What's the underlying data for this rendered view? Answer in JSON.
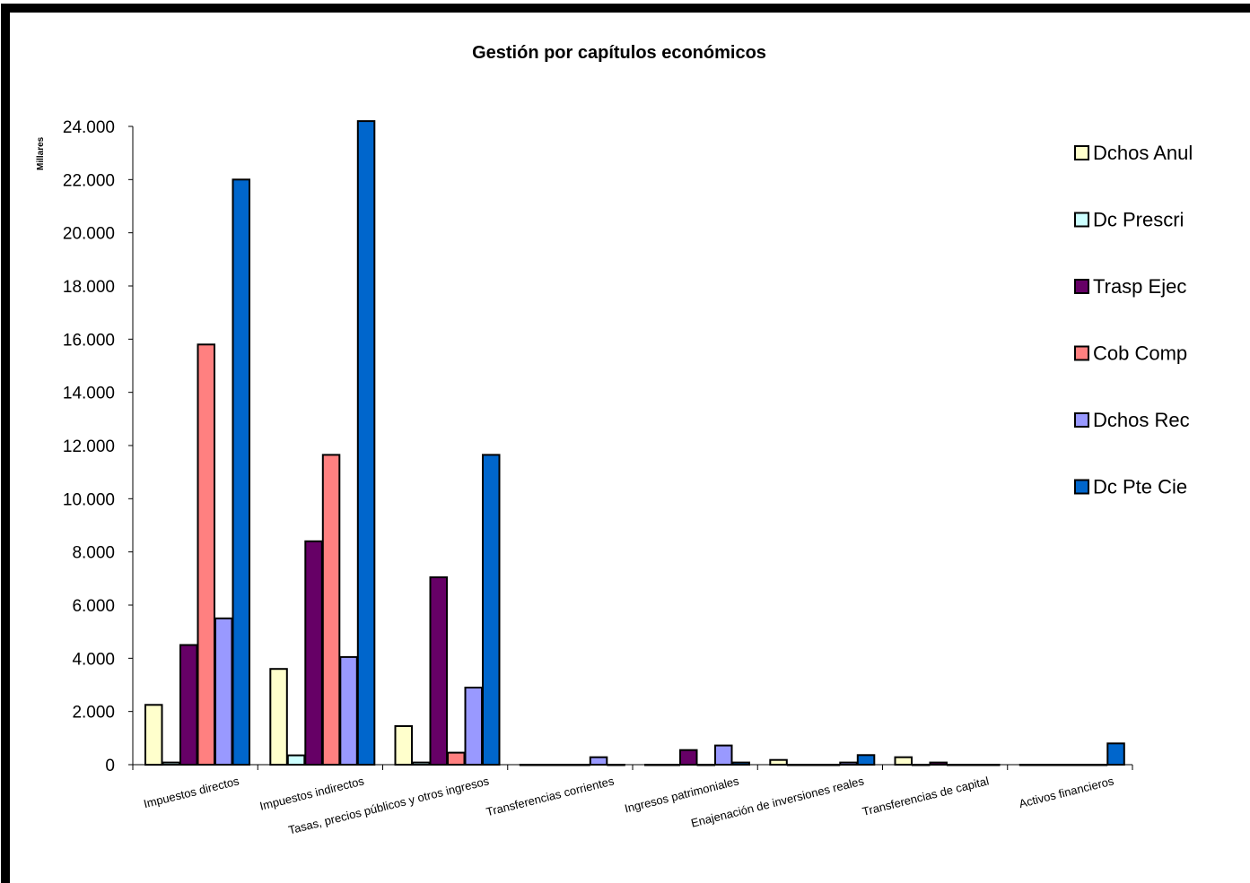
{
  "chart_data": {
    "type": "bar",
    "title": "Gestión por capítulos económicos",
    "ylabel": "Millares",
    "ylim": [
      0,
      24000
    ],
    "yticks": [
      "0",
      "2.000",
      "4.000",
      "6.000",
      "8.000",
      "10.000",
      "12.000",
      "14.000",
      "16.000",
      "18.000",
      "20.000",
      "22.000",
      "24.000"
    ],
    "grid": false,
    "legend_position": "right",
    "categories": [
      "Impuestos directos",
      "Impuestos indirectos",
      "Tasas, precios públicos y otros ingresos",
      "Transferencias corrientes",
      "Ingresos patrimoniales",
      "Enajenación de inversiones reales",
      "Transferencias de capital",
      "Activos financieros"
    ],
    "series": [
      {
        "name": "Dchos Anul",
        "color": "#FFFFCC",
        "values": [
          2250,
          3600,
          1450,
          0,
          0,
          180,
          280,
          0
        ]
      },
      {
        "name": "Dc Prescri",
        "color": "#CCFFFF",
        "values": [
          80,
          350,
          80,
          0,
          0,
          0,
          0,
          0
        ]
      },
      {
        "name": "Trasp Ejec",
        "color": "#660066",
        "values": [
          4500,
          8400,
          7050,
          0,
          550,
          0,
          80,
          0
        ]
      },
      {
        "name": "Cob Comp",
        "color": "#FF8080",
        "values": [
          15800,
          11650,
          450,
          0,
          0,
          0,
          0,
          0
        ]
      },
      {
        "name": "Dchos Rec",
        "color": "#9999FF",
        "values": [
          5500,
          4050,
          2900,
          280,
          720,
          80,
          0,
          0
        ]
      },
      {
        "name": "Dc Pte Cie",
        "color": "#0066CC",
        "values": [
          22000,
          24200,
          11650,
          0,
          80,
          360,
          0,
          800
        ]
      }
    ]
  }
}
